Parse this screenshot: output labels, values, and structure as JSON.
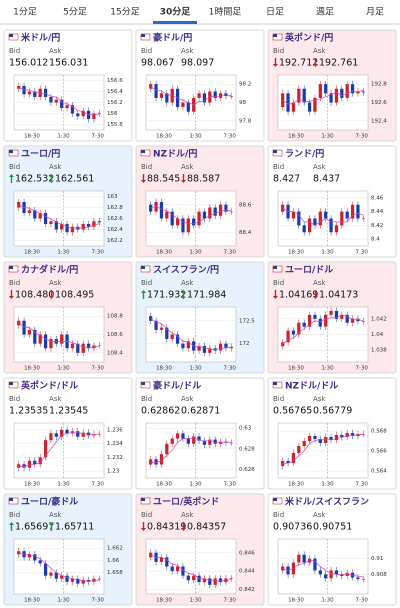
{
  "tabs": [
    "1分足",
    "5分足",
    "15分足",
    "30分足",
    "1時間足",
    "日足",
    "週足",
    "月足"
  ],
  "active_tab": 3,
  "bid_label": "Bid",
  "ask_label": "Ask",
  "xlabels": [
    "18:30",
    "1:30",
    "7:30"
  ],
  "panels": [
    {
      "name": "米ドル/円",
      "bg": "white",
      "trend": null,
      "bid": "156.012",
      "ask": "156.031",
      "ylim": [
        155.7,
        156.7
      ],
      "yticks": [
        156.6,
        156.4,
        156.2,
        156,
        155.8
      ],
      "closes": [
        156.45,
        156.5,
        156.35,
        156.4,
        156.3,
        156.45,
        156.3,
        156.2,
        156.25,
        156.1,
        156.15,
        156.0,
        155.95,
        156.05,
        155.9,
        156.0,
        156.01
      ]
    },
    {
      "name": "豪ドル/円",
      "bg": "white",
      "trend": null,
      "bid": "98.067",
      "ask": "98.097",
      "ylim": [
        97.7,
        98.3
      ],
      "yticks": [
        98.2,
        98,
        97.8
      ],
      "closes": [
        98.15,
        98.2,
        98.05,
        98.1,
        98.0,
        98.15,
        97.95,
        98.0,
        97.9,
        98.05,
        98.1,
        98.0,
        98.12,
        98.05,
        98.1,
        98.07,
        98.07
      ]
    },
    {
      "name": "英ポンド/円",
      "bg": "pink",
      "trend": "down",
      "bid": "192.712",
      "ask": "192.761",
      "ylim": [
        192.3,
        192.9
      ],
      "yticks": [
        192.8,
        192.6,
        192.4
      ],
      "closes": [
        192.55,
        192.7,
        192.5,
        192.6,
        192.75,
        192.6,
        192.5,
        192.65,
        192.8,
        192.7,
        192.6,
        192.75,
        192.65,
        192.8,
        192.7,
        192.72,
        192.71
      ]
    },
    {
      "name": "ユーロ/円",
      "bg": "blue",
      "trend": "up",
      "bid": "162.532",
      "ask": "162.561",
      "ylim": [
        162.1,
        163.1
      ],
      "yticks": [
        163,
        162.8,
        162.6,
        162.4,
        162.2
      ],
      "closes": [
        162.8,
        162.9,
        162.7,
        162.75,
        162.6,
        162.7,
        162.5,
        162.55,
        162.4,
        162.5,
        162.35,
        162.45,
        162.4,
        162.5,
        162.45,
        162.55,
        162.53
      ]
    },
    {
      "name": "NZドル/円",
      "bg": "pink",
      "trend": "down",
      "bid": "88.545",
      "ask": "88.587",
      "ylim": [
        88.3,
        88.7
      ],
      "yticks": [
        88.6,
        88.4
      ],
      "closes": [
        88.6,
        88.55,
        88.62,
        88.5,
        88.55,
        88.45,
        88.5,
        88.4,
        88.5,
        88.45,
        88.55,
        88.5,
        88.58,
        88.52,
        88.6,
        88.55,
        88.55
      ]
    },
    {
      "name": "ランド/円",
      "bg": "white",
      "trend": null,
      "bid": "8.427",
      "ask": "8.437",
      "ylim": [
        8.39,
        8.47
      ],
      "yticks": [
        8.46,
        8.44,
        8.42,
        8.4
      ],
      "closes": [
        8.44,
        8.45,
        8.43,
        8.44,
        8.42,
        8.41,
        8.43,
        8.42,
        8.44,
        8.43,
        8.41,
        8.42,
        8.44,
        8.43,
        8.45,
        8.43,
        8.43
      ]
    },
    {
      "name": "カナダドル/円",
      "bg": "pink",
      "trend": "down",
      "bid": "108.480",
      "ask": "108.495",
      "ylim": [
        108.3,
        108.9
      ],
      "yticks": [
        108.8,
        108.6,
        108.4
      ],
      "closes": [
        108.7,
        108.75,
        108.6,
        108.65,
        108.5,
        108.6,
        108.45,
        108.55,
        108.5,
        108.6,
        108.45,
        108.5,
        108.4,
        108.5,
        108.45,
        108.48,
        108.48
      ]
    },
    {
      "name": "スイスフラン/円",
      "bg": "blue",
      "trend": "up",
      "bid": "171.932",
      "ask": "171.984",
      "ylim": [
        171.6,
        172.8
      ],
      "yticks": [
        172.5,
        172
      ],
      "closes": [
        172.6,
        172.5,
        172.3,
        172.35,
        172.1,
        172.2,
        172.0,
        171.9,
        172.05,
        171.85,
        171.95,
        171.8,
        171.9,
        171.85,
        172.0,
        171.9,
        171.93
      ]
    },
    {
      "name": "ユーロ/ドル",
      "bg": "pink",
      "trend": "down",
      "bid": "1.04169",
      "ask": "1.04173",
      "ylim": [
        1.0365,
        1.0435
      ],
      "yticks": [
        1.042,
        1.04,
        1.038
      ],
      "closes": [
        1.0385,
        1.039,
        1.0405,
        1.04,
        1.0415,
        1.041,
        1.0425,
        1.042,
        1.041,
        1.0425,
        1.043,
        1.042,
        1.0425,
        1.0415,
        1.042,
        1.0417,
        1.0417
      ]
    },
    {
      "name": "英ポンド/ドル",
      "bg": "white",
      "trend": null,
      "bid": "1.23535",
      "ask": "1.23545",
      "ylim": [
        1.229,
        1.237
      ],
      "yticks": [
        1.236,
        1.234,
        1.232,
        1.23
      ],
      "closes": [
        1.2305,
        1.231,
        1.2305,
        1.2315,
        1.231,
        1.232,
        1.2345,
        1.2355,
        1.235,
        1.236,
        1.2355,
        1.2358,
        1.235,
        1.2356,
        1.2352,
        1.2354,
        1.2354
      ]
    },
    {
      "name": "豪ドル/ドル",
      "bg": "white",
      "trend": null,
      "bid": "0.62862",
      "ask": "0.62871",
      "ylim": [
        0.6252,
        0.6305
      ],
      "yticks": [
        0.63,
        0.628,
        0.626
      ],
      "closes": [
        0.6265,
        0.627,
        0.6265,
        0.6275,
        0.6285,
        0.629,
        0.6295,
        0.629,
        0.6285,
        0.6292,
        0.6288,
        0.6284,
        0.6289,
        0.6285,
        0.6287,
        0.6286,
        0.6286
      ]
    },
    {
      "name": "NZドル/ドル",
      "bg": "white",
      "trend": null,
      "bid": "0.56765",
      "ask": "0.56779",
      "ylim": [
        0.5633,
        0.5688
      ],
      "yticks": [
        0.568,
        0.566,
        0.564
      ],
      "closes": [
        0.5645,
        0.565,
        0.5648,
        0.5658,
        0.5665,
        0.567,
        0.5675,
        0.5672,
        0.5668,
        0.5674,
        0.5671,
        0.5676,
        0.5674,
        0.5678,
        0.5675,
        0.5677,
        0.5677
      ]
    },
    {
      "name": "ユーロ/豪ドル",
      "bg": "blue",
      "trend": "up",
      "bid": "1.65697",
      "ask": "1.65711",
      "ylim": [
        1.6545,
        1.6635
      ],
      "yticks": [
        1.662,
        1.66,
        1.658
      ],
      "closes": [
        1.661,
        1.6615,
        1.6605,
        1.661,
        1.66,
        1.6595,
        1.6575,
        1.658,
        1.657,
        1.6575,
        1.6565,
        1.657,
        1.6562,
        1.6568,
        1.6565,
        1.657,
        1.657
      ]
    },
    {
      "name": "ユーロ/英ポンド",
      "bg": "pink",
      "trend": "down",
      "bid": "0.84319",
      "ask": "0.84357",
      "ylim": [
        0.8415,
        0.8475
      ],
      "yticks": [
        0.846,
        0.844,
        0.842
      ],
      "closes": [
        0.8455,
        0.846,
        0.845,
        0.8455,
        0.8445,
        0.844,
        0.8445,
        0.8435,
        0.843,
        0.8435,
        0.8428,
        0.8432,
        0.8425,
        0.8432,
        0.8428,
        0.8432,
        0.8432
      ]
    },
    {
      "name": "米ドル/スイスフラン",
      "bg": "white",
      "trend": null,
      "bid": "0.90736",
      "ask": "0.90751",
      "ylim": [
        0.9055,
        0.9125
      ],
      "yticks": [
        0.91,
        0.908
      ],
      "closes": [
        0.9085,
        0.909,
        0.908,
        0.9095,
        0.9105,
        0.9095,
        0.91,
        0.9085,
        0.908,
        0.9075,
        0.9085,
        0.908,
        0.9078,
        0.9082,
        0.9076,
        0.9074,
        0.9074
      ]
    }
  ]
}
